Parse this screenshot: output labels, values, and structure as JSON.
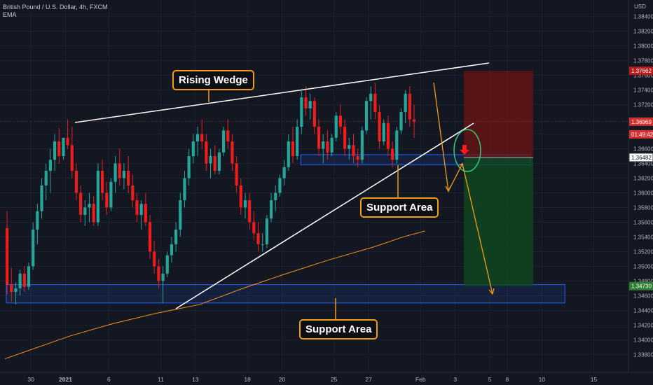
{
  "legend": {
    "symbol": "British Pound / U.S. Dollar, 4h, FXCM",
    "indicator": "EMA"
  },
  "annotations": {
    "rising_wedge": "Rising Wedge",
    "support_upper": "Support Area",
    "support_lower": "Support Area"
  },
  "colors": {
    "background": "#131722",
    "bull": "#26a69a",
    "bear": "#ef1c1c",
    "ema": "#f7931a",
    "callout_border": "#f39c12",
    "support_zone": "#2962ff",
    "stop_zone": "#6e1414",
    "target_zone": "#0f4a1e"
  },
  "chart_data": {
    "type": "candlestick",
    "symbol": "GBPUSD",
    "timeframe": "4h",
    "currency": "USD",
    "ylim": [
      1.3365,
      1.3855
    ],
    "y_ticks": [
      1.338,
      1.34,
      1.342,
      1.344,
      1.346,
      1.348,
      1.35,
      1.352,
      1.354,
      1.356,
      1.358,
      1.36,
      1.362,
      1.364,
      1.366,
      1.368,
      1.372,
      1.374,
      1.376,
      1.378,
      1.38,
      1.382,
      1.384
    ],
    "y_tick_labels": [
      "1.33800",
      "1.34000",
      "1.34200",
      "1.34400",
      "1.34600",
      "1.34800",
      "1.35000",
      "1.35200",
      "1.35400",
      "1.35600",
      "1.35800",
      "1.36000",
      "1.36200",
      "1.36400",
      "1.36600",
      "1.36800",
      "1.37200",
      "1.37400",
      "1.37600",
      "1.37800",
      "1.38000",
      "1.38200",
      "1.38400"
    ],
    "x_ticks": [
      {
        "label": "30",
        "bar": 6
      },
      {
        "label": "2021",
        "bar": 14
      },
      {
        "label": "6",
        "bar": 24
      },
      {
        "label": "11",
        "bar": 36
      },
      {
        "label": "13",
        "bar": 44
      },
      {
        "label": "18",
        "bar": 56
      },
      {
        "label": "20",
        "bar": 64
      },
      {
        "label": "25",
        "bar": 76
      },
      {
        "label": "27",
        "bar": 84
      },
      {
        "label": "Feb",
        "bar": 96
      },
      {
        "label": "3",
        "bar": 104
      },
      {
        "label": "5",
        "bar": 112
      },
      {
        "label": "8",
        "bar": 116
      },
      {
        "label": "10",
        "bar": 124
      },
      {
        "label": "15",
        "bar": 136
      }
    ],
    "price_tags": [
      {
        "label": "1.37662",
        "value": 1.37662,
        "style": "stop"
      },
      {
        "label": "1.36969",
        "value": 1.36969,
        "style": "last"
      },
      {
        "label": "01:49:42",
        "value": 1.36797,
        "style": "timer"
      },
      {
        "label": "1.36482",
        "value": 1.36482,
        "style": "entry"
      },
      {
        "label": "1.34730",
        "value": 1.3473,
        "style": "target"
      }
    ],
    "candles": [
      [
        1.3552,
        1.3575,
        1.3462,
        1.3475
      ],
      [
        1.3475,
        1.3498,
        1.3452,
        1.3465
      ],
      [
        1.3465,
        1.3478,
        1.3448,
        1.347
      ],
      [
        1.347,
        1.3495,
        1.346,
        1.349
      ],
      [
        1.349,
        1.35,
        1.3465,
        1.3472
      ],
      [
        1.3472,
        1.3505,
        1.3468,
        1.35
      ],
      [
        1.35,
        1.356,
        1.3495,
        1.355
      ],
      [
        1.355,
        1.3585,
        1.353,
        1.3575
      ],
      [
        1.3575,
        1.362,
        1.3565,
        1.361
      ],
      [
        1.361,
        1.364,
        1.359,
        1.363
      ],
      [
        1.363,
        1.366,
        1.36,
        1.3645
      ],
      [
        1.3645,
        1.368,
        1.363,
        1.367
      ],
      [
        1.367,
        1.3688,
        1.364,
        1.365
      ],
      [
        1.365,
        1.3675,
        1.3645,
        1.3675
      ],
      [
        1.3675,
        1.37,
        1.366,
        1.3665
      ],
      [
        1.3665,
        1.369,
        1.362,
        1.363
      ],
      [
        1.363,
        1.364,
        1.359,
        1.36
      ],
      [
        1.36,
        1.361,
        1.356,
        1.357
      ],
      [
        1.357,
        1.359,
        1.3555,
        1.358
      ],
      [
        1.358,
        1.36,
        1.356,
        1.3585
      ],
      [
        1.3585,
        1.3595,
        1.3555,
        1.356
      ],
      [
        1.356,
        1.364,
        1.3555,
        1.363
      ],
      [
        1.363,
        1.3645,
        1.359,
        1.36
      ],
      [
        1.36,
        1.3615,
        1.357,
        1.358
      ],
      [
        1.358,
        1.362,
        1.3575,
        1.3615
      ],
      [
        1.3615,
        1.365,
        1.36,
        1.364
      ],
      [
        1.364,
        1.366,
        1.361,
        1.362
      ],
      [
        1.362,
        1.364,
        1.3605,
        1.363
      ],
      [
        1.363,
        1.365,
        1.36,
        1.361
      ],
      [
        1.361,
        1.3625,
        1.358,
        1.359
      ],
      [
        1.359,
        1.36,
        1.356,
        1.357
      ],
      [
        1.357,
        1.359,
        1.355,
        1.3585
      ],
      [
        1.3585,
        1.36,
        1.3555,
        1.356
      ],
      [
        1.356,
        1.357,
        1.351,
        1.352
      ],
      [
        1.352,
        1.3535,
        1.349,
        1.35
      ],
      [
        1.35,
        1.351,
        1.347,
        1.348
      ],
      [
        1.348,
        1.35,
        1.345,
        1.349
      ],
      [
        1.349,
        1.352,
        1.3485,
        1.3515
      ],
      [
        1.3515,
        1.354,
        1.3505,
        1.353
      ],
      [
        1.353,
        1.356,
        1.352,
        1.355
      ],
      [
        1.355,
        1.36,
        1.354,
        1.359
      ],
      [
        1.359,
        1.363,
        1.358,
        1.362
      ],
      [
        1.362,
        1.366,
        1.361,
        1.365
      ],
      [
        1.365,
        1.368,
        1.364,
        1.367
      ],
      [
        1.367,
        1.369,
        1.365,
        1.368
      ],
      [
        1.368,
        1.37,
        1.366,
        1.367
      ],
      [
        1.367,
        1.368,
        1.363,
        1.364
      ],
      [
        1.364,
        1.366,
        1.362,
        1.365
      ],
      [
        1.365,
        1.3665,
        1.3625,
        1.363
      ],
      [
        1.363,
        1.366,
        1.3625,
        1.3655
      ],
      [
        1.3655,
        1.369,
        1.365,
        1.3685
      ],
      [
        1.3685,
        1.37,
        1.366,
        1.367
      ],
      [
        1.367,
        1.368,
        1.363,
        1.364
      ],
      [
        1.364,
        1.365,
        1.36,
        1.361
      ],
      [
        1.361,
        1.362,
        1.357,
        1.358
      ],
      [
        1.358,
        1.36,
        1.3565,
        1.359
      ],
      [
        1.359,
        1.36,
        1.355,
        1.356
      ],
      [
        1.356,
        1.3575,
        1.3535,
        1.3545
      ],
      [
        1.3545,
        1.356,
        1.352,
        1.353
      ],
      [
        1.353,
        1.3545,
        1.352,
        1.353
      ],
      [
        1.353,
        1.357,
        1.3525,
        1.3565
      ],
      [
        1.3565,
        1.36,
        1.356,
        1.359
      ],
      [
        1.359,
        1.361,
        1.3575,
        1.36
      ],
      [
        1.36,
        1.3625,
        1.3595,
        1.362
      ],
      [
        1.362,
        1.3645,
        1.361,
        1.3635
      ],
      [
        1.3635,
        1.368,
        1.363,
        1.367
      ],
      [
        1.367,
        1.369,
        1.364,
        1.365
      ],
      [
        1.365,
        1.37,
        1.3645,
        1.369
      ],
      [
        1.369,
        1.374,
        1.368,
        1.373
      ],
      [
        1.373,
        1.3745,
        1.3705,
        1.3715
      ],
      [
        1.3715,
        1.3735,
        1.37,
        1.3725
      ],
      [
        1.3725,
        1.373,
        1.368,
        1.369
      ],
      [
        1.369,
        1.37,
        1.365,
        1.366
      ],
      [
        1.366,
        1.368,
        1.364,
        1.367
      ],
      [
        1.367,
        1.3685,
        1.3645,
        1.3655
      ],
      [
        1.3655,
        1.368,
        1.365,
        1.3675
      ],
      [
        1.3675,
        1.371,
        1.367,
        1.3705
      ],
      [
        1.3705,
        1.372,
        1.368,
        1.369
      ],
      [
        1.369,
        1.37,
        1.365,
        1.366
      ],
      [
        1.366,
        1.3675,
        1.3645,
        1.3665
      ],
      [
        1.3665,
        1.368,
        1.364,
        1.365
      ],
      [
        1.365,
        1.366,
        1.3635,
        1.3645
      ],
      [
        1.3645,
        1.369,
        1.364,
        1.3685
      ],
      [
        1.3685,
        1.373,
        1.368,
        1.3725
      ],
      [
        1.3725,
        1.3745,
        1.37,
        1.3735
      ],
      [
        1.3735,
        1.375,
        1.37,
        1.371
      ],
      [
        1.371,
        1.372,
        1.366,
        1.367
      ],
      [
        1.367,
        1.37,
        1.3665,
        1.3695
      ],
      [
        1.3695,
        1.3705,
        1.365,
        1.366
      ],
      [
        1.366,
        1.367,
        1.3635,
        1.3645
      ],
      [
        1.3645,
        1.369,
        1.364,
        1.3685
      ],
      [
        1.3685,
        1.3715,
        1.368,
        1.371
      ],
      [
        1.371,
        1.374,
        1.3695,
        1.3735
      ],
      [
        1.3735,
        1.3745,
        1.369,
        1.37
      ],
      [
        1.37,
        1.372,
        1.3675,
        1.3697
      ]
    ],
    "ema": [
      [
        1.3374,
        0
      ],
      [
        1.3405,
        15
      ],
      [
        1.3422,
        25
      ],
      [
        1.3436,
        35
      ],
      [
        1.3448,
        45
      ],
      [
        1.347,
        55
      ],
      [
        1.349,
        65
      ],
      [
        1.3509,
        75
      ],
      [
        1.3526,
        85
      ],
      [
        1.354,
        92
      ],
      [
        1.3548,
        97
      ]
    ],
    "support_zones": [
      {
        "bar_from": 0,
        "bar_to": 129,
        "low": 1.345,
        "high": 1.3475
      },
      {
        "bar_from": 68,
        "bar_to": 121,
        "low": 1.3638,
        "high": 1.3652
      }
    ],
    "trade": {
      "entry": 1.36482,
      "stop": 1.37662,
      "target": 1.3473,
      "bar_from": 106,
      "bar_to": 122
    }
  }
}
